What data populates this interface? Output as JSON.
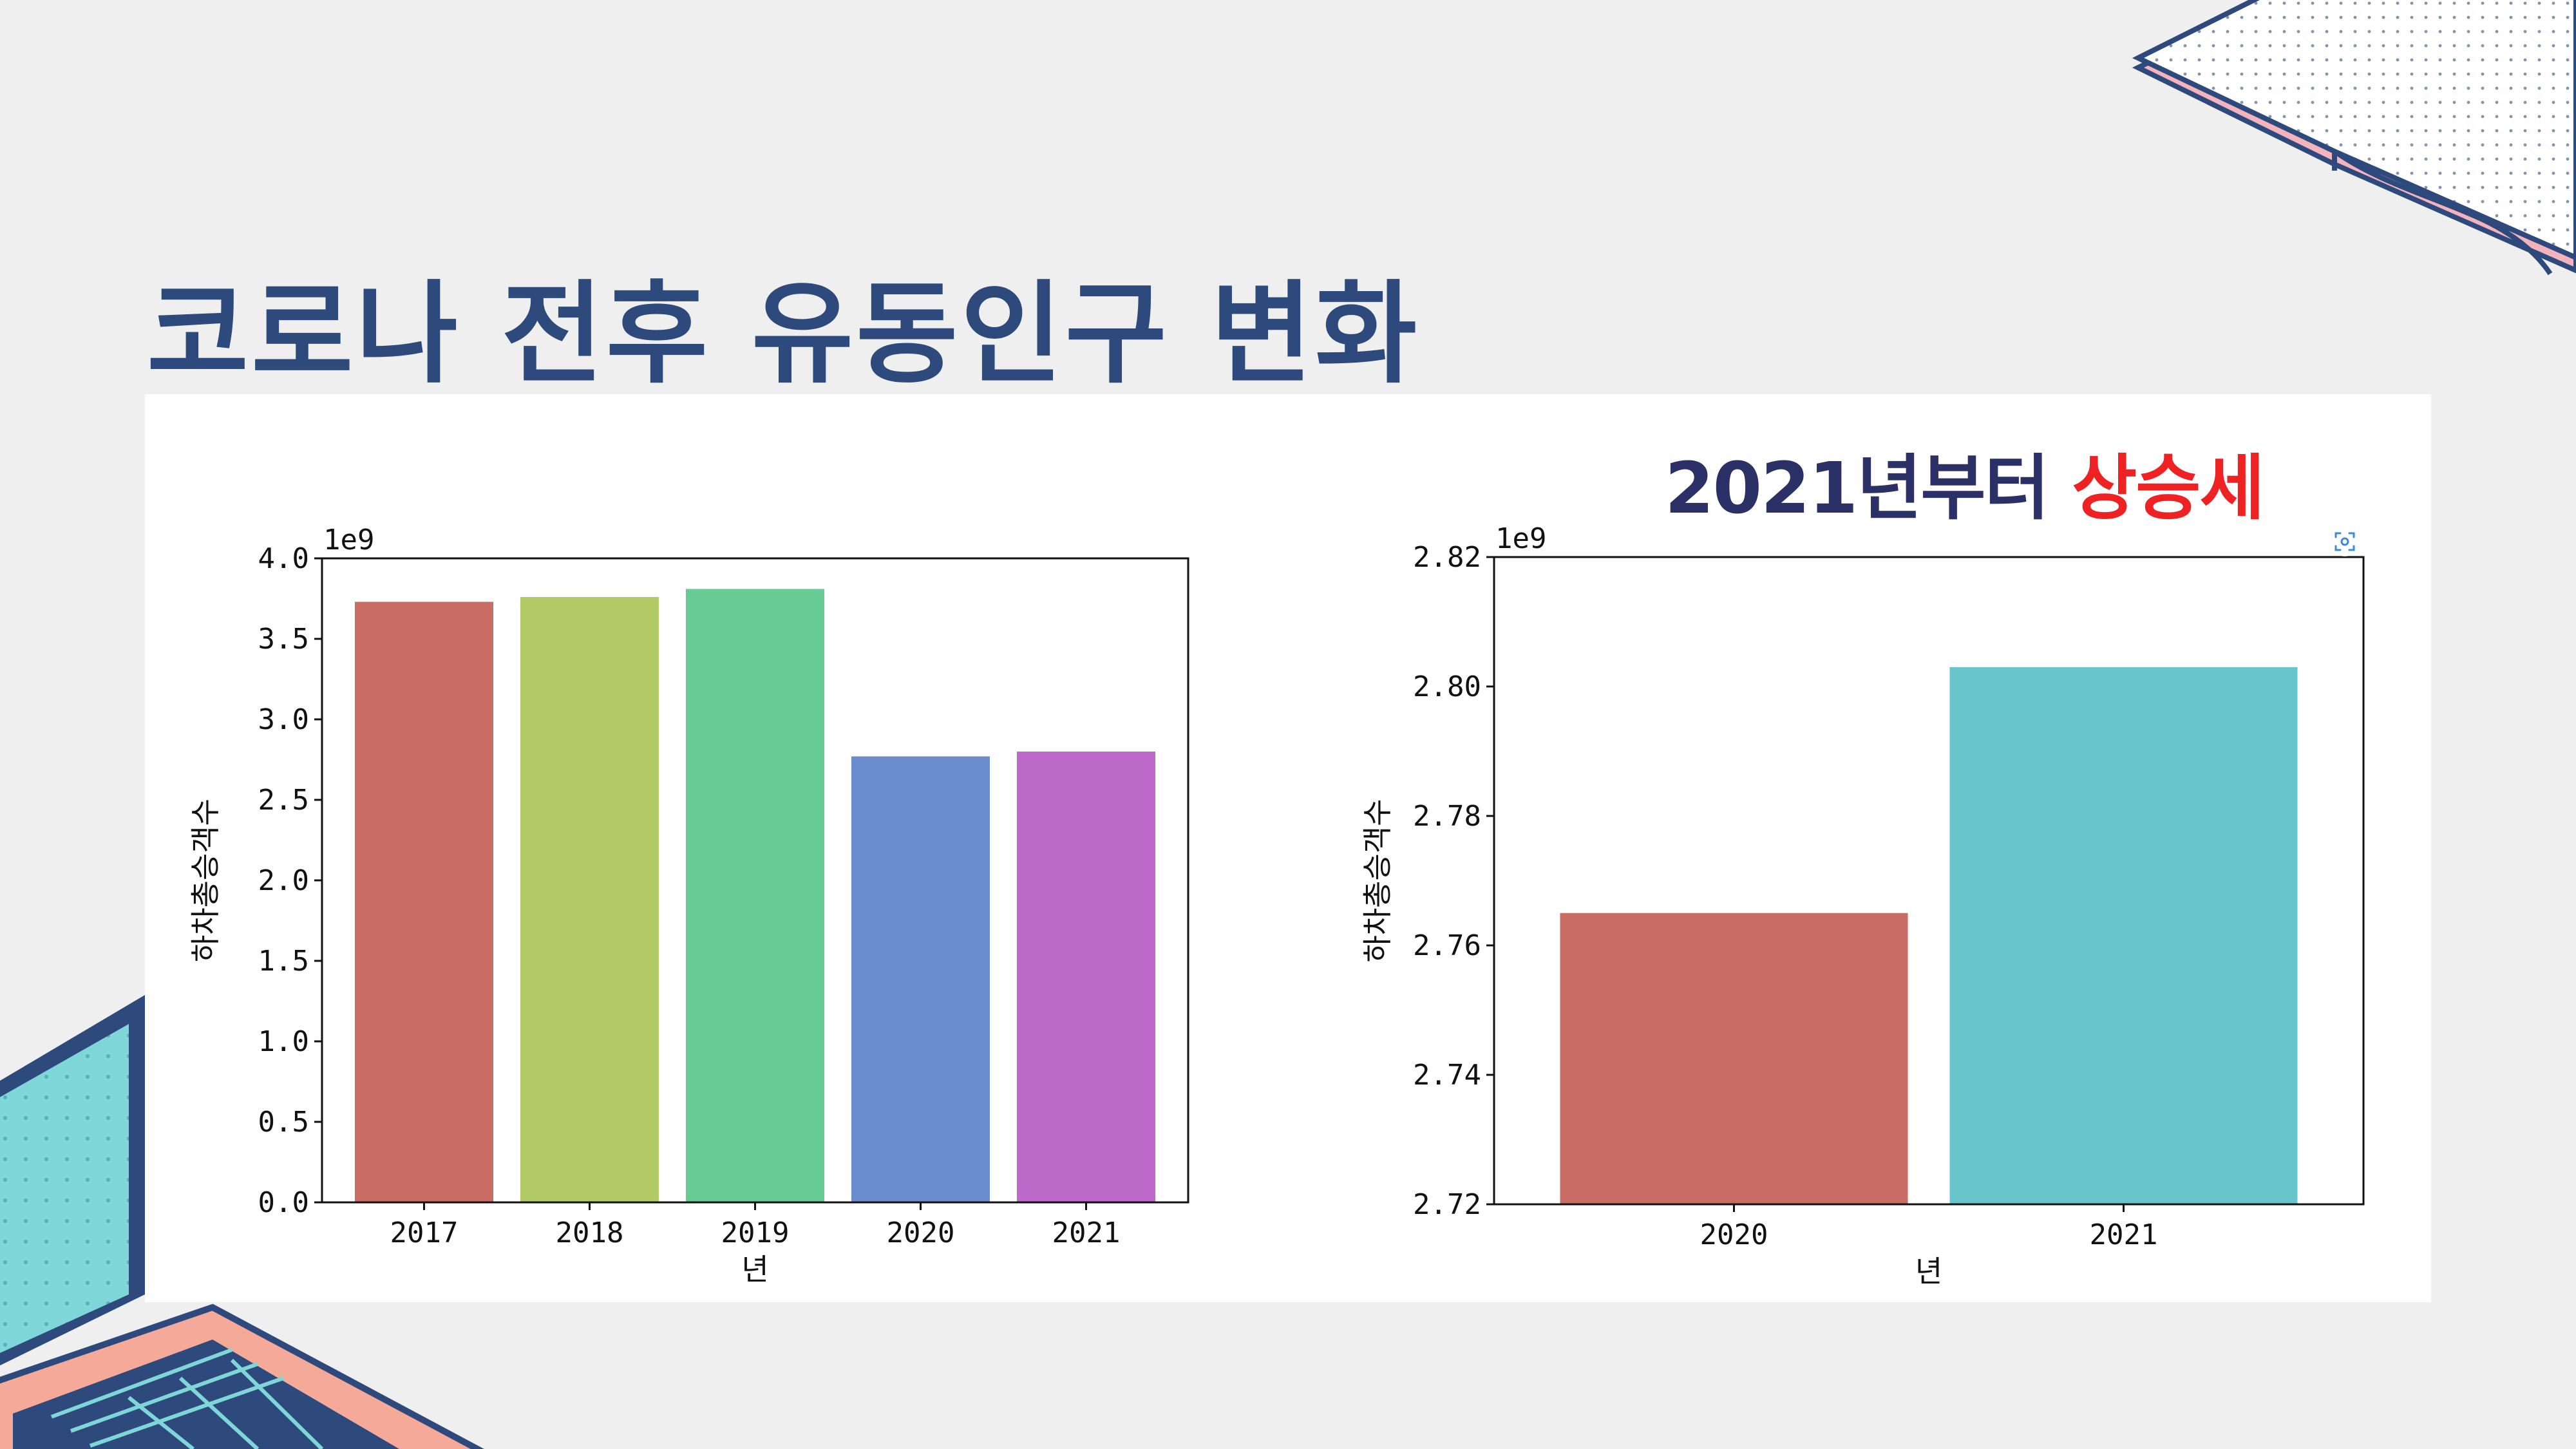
{
  "slide": {
    "title": "코로나 전후 유동인구 변화",
    "subtitle_main": "2021년부터 ",
    "subtitle_highlight": "상승세",
    "colors": {
      "title": "#2e4a7d",
      "subtitle": "#2b3066",
      "highlight": "#ee2222",
      "background": "#efefef",
      "panel": "#ffffff"
    }
  },
  "chart_data": [
    {
      "type": "bar",
      "categories": [
        "2017",
        "2018",
        "2019",
        "2020",
        "2021"
      ],
      "values": [
        3.73,
        3.76,
        3.81,
        2.77,
        2.8
      ],
      "colors": [
        "#c96c64",
        "#b3cb66",
        "#67cb94",
        "#6a8bcc",
        "#bc69c9"
      ],
      "xlabel": "년",
      "ylabel": "하차총승객수",
      "ylim": [
        0,
        4.0
      ],
      "yticks": [
        "0.0",
        "0.5",
        "1.0",
        "1.5",
        "2.0",
        "2.5",
        "3.0",
        "3.5",
        "4.0"
      ],
      "offset_label": "1e9",
      "grid": false
    },
    {
      "type": "bar",
      "categories": [
        "2020",
        "2021"
      ],
      "values": [
        2.765,
        2.803
      ],
      "colors": [
        "#c96c64",
        "#68c5cc"
      ],
      "xlabel": "년",
      "ylabel": "하차총승객수",
      "ylim": [
        2.72,
        2.82
      ],
      "yticks": [
        "2.72",
        "2.74",
        "2.76",
        "2.78",
        "2.80",
        "2.82"
      ],
      "offset_label": "1e9",
      "grid": false
    }
  ]
}
